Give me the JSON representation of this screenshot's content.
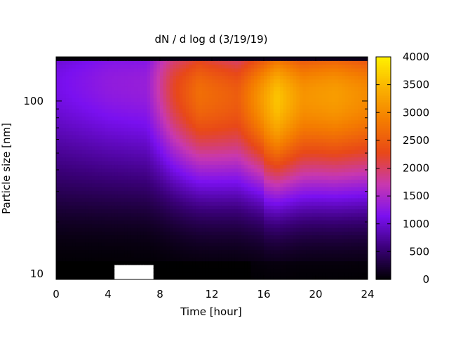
{
  "chart_data": {
    "type": "heatmap",
    "title": "dN / d log d (3/19/19)",
    "xlabel": "Time [hour]",
    "ylabel": "Particle size [nm]",
    "xlim": [
      0,
      24
    ],
    "x_ticks": [
      0,
      4,
      8,
      12,
      16,
      20,
      24
    ],
    "x_tick_labels": [
      "0",
      "4",
      "8",
      "12",
      "16",
      "20",
      "24"
    ],
    "y_scale": "log",
    "ylim": [
      9.3,
      180
    ],
    "y_ticks": [
      10,
      100
    ],
    "y_tick_labels": [
      "10",
      "100"
    ],
    "colorbar": {
      "range": [
        0,
        4000
      ],
      "ticks": [
        0,
        500,
        1000,
        1500,
        2000,
        2500,
        3000,
        3500,
        4000
      ],
      "tick_labels": [
        "0",
        "500",
        "1000",
        "1500",
        "2000",
        "2500",
        "3000",
        "3500",
        "4000"
      ],
      "palette": [
        "#000000",
        "#3a0078",
        "#7a10f0",
        "#c838b0",
        "#e84818",
        "#f47c00",
        "#fab000",
        "#fff000"
      ]
    },
    "mode_diameter_nm": [
      {
        "time_h": 0,
        "size_nm": 130
      },
      {
        "time_h": 4,
        "size_nm": 130
      },
      {
        "time_h": 8,
        "size_nm": 125
      },
      {
        "time_h": 10,
        "size_nm": 115
      },
      {
        "time_h": 12,
        "size_nm": 110
      },
      {
        "time_h": 16,
        "size_nm": 105
      },
      {
        "time_h": 17,
        "size_nm": 105
      },
      {
        "time_h": 20,
        "size_nm": 110
      },
      {
        "time_h": 24,
        "size_nm": 110
      }
    ],
    "peak_concentration": [
      {
        "time_h": 0,
        "value": 1100
      },
      {
        "time_h": 4,
        "value": 1300
      },
      {
        "time_h": 7,
        "value": 1350
      },
      {
        "time_h": 9,
        "value": 2200
      },
      {
        "time_h": 11,
        "value": 2700
      },
      {
        "time_h": 14,
        "value": 2500
      },
      {
        "time_h": 17,
        "value": 3600
      },
      {
        "time_h": 19,
        "value": 3100
      },
      {
        "time_h": 21.5,
        "value": 3200
      },
      {
        "time_h": 24,
        "value": 3000
      }
    ],
    "missing_data_region": {
      "time_h": [
        4.5,
        7.5
      ],
      "size_nm": [
        9.3,
        11.5
      ]
    }
  }
}
